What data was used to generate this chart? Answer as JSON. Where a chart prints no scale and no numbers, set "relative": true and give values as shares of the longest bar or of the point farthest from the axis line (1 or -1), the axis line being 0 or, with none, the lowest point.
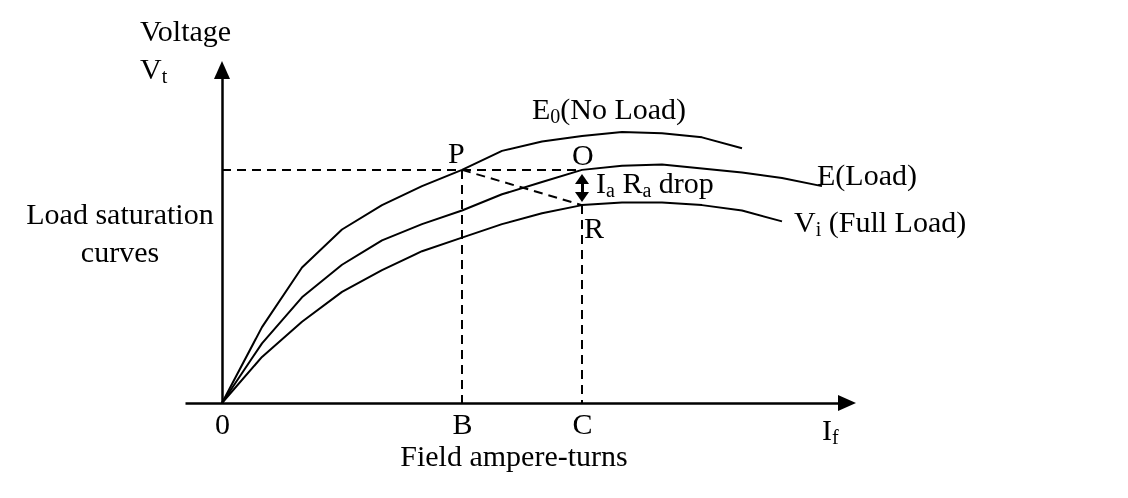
{
  "chart_data": {
    "type": "line",
    "relative": true,
    "xlabel": "Field ampere-turns",
    "ylabel": "Voltage V$_{t}$",
    "marker": "none",
    "grid": false,
    "categories": [
      "0",
      null,
      null,
      null,
      null,
      null,
      "B",
      null,
      null,
      "C",
      null,
      null,
      null,
      null,
      null,
      null
    ],
    "series": [
      {
        "name": "E$_{0}$(No Load)",
        "color": "#000000",
        "line_style": "solid",
        "values": [
          0,
          0.28,
          0.5,
          0.64,
          0.73,
          0.8,
          0.86,
          0.93,
          0.965,
          0.985,
          1.0,
          0.995,
          0.98,
          0.94,
          null,
          null
        ]
      },
      {
        "name": "E(Load)",
        "color": "#000000",
        "line_style": "solid",
        "values": [
          0,
          0.22,
          0.39,
          0.51,
          0.6,
          0.66,
          0.71,
          0.77,
          0.815,
          0.86,
          0.875,
          0.88,
          0.865,
          0.85,
          0.83,
          0.8
        ]
      },
      {
        "name": "V$_{i}$ (Full Load)",
        "color": "#000000",
        "line_style": "solid",
        "values": [
          0,
          0.17,
          0.3,
          0.41,
          0.49,
          0.56,
          0.61,
          0.66,
          0.7,
          0.73,
          0.74,
          0.74,
          0.73,
          0.71,
          0.67,
          null
        ]
      },
      {
        "color": "#000000",
        "line_style": "dashed",
        "x": [
          "0",
          "C"
        ],
        "values": [
          0.86,
          0.86
        ]
      },
      {
        "color": "#000000",
        "line_style": "dashed",
        "x": [
          "B",
          "B"
        ],
        "values": [
          0.86,
          0
        ]
      },
      {
        "color": "#000000",
        "line_style": "dashed",
        "x": [
          "C",
          "C"
        ],
        "values": [
          0.73,
          0
        ]
      },
      {
        "color": "#000000",
        "line_style": "dashed",
        "x": [
          "B",
          "C"
        ],
        "values": [
          0.86,
          0.73
        ]
      }
    ],
    "annotations": [
      {
        "text": "P",
        "x": "B",
        "y": 0.86
      },
      {
        "text": "O",
        "x": "C",
        "y": 0.86
      },
      {
        "text": "R",
        "x": "C",
        "y": 0.73
      },
      "I$_{a}$ R$_{a}$ drop",
      "Load saturation curves",
      "I$_{f}$"
    ]
  }
}
